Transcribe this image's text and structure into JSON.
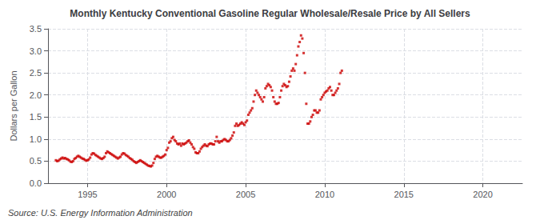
{
  "chart_data": {
    "type": "scatter",
    "title": "Monthly Kentucky Conventional Gasoline Regular Wholesale/Resale Price by All Sellers",
    "ylabel": "Dollars per Gallon",
    "annotations": [
      "Source: U.S. Energy Information Administration"
    ],
    "color": "#cc0000",
    "marker": "square",
    "grid": true,
    "xlim": [
      1992.5,
      2022.5
    ],
    "xticks": [
      1995,
      2000,
      2005,
      2010,
      2015,
      2020
    ],
    "ylim": [
      0.0,
      3.5
    ],
    "yticks": [
      {
        "value": 0.0,
        "label": "0.0"
      },
      0.5,
      {
        "value": 1.0,
        "label": "1.0"
      },
      1.5,
      {
        "value": 2.0,
        "label": "2.0"
      },
      2.5,
      {
        "value": 3.0,
        "label": "3.0"
      },
      3.5
    ],
    "x": [
      1993.0,
      1993.083,
      1993.167,
      1993.25,
      1993.333,
      1993.417,
      1993.5,
      1993.583,
      1993.667,
      1993.75,
      1993.833,
      1993.917,
      1994.0,
      1994.083,
      1994.167,
      1994.25,
      1994.333,
      1994.417,
      1994.5,
      1994.583,
      1994.667,
      1994.75,
      1994.833,
      1994.917,
      1995.0,
      1995.083,
      1995.167,
      1995.25,
      1995.333,
      1995.417,
      1995.5,
      1995.583,
      1995.667,
      1995.75,
      1995.833,
      1995.917,
      1996.0,
      1996.083,
      1996.167,
      1996.25,
      1996.333,
      1996.417,
      1996.5,
      1996.583,
      1996.667,
      1996.75,
      1996.833,
      1996.917,
      1997.0,
      1997.083,
      1997.167,
      1997.25,
      1997.333,
      1997.417,
      1997.5,
      1997.583,
      1997.667,
      1997.75,
      1997.833,
      1997.917,
      1998.0,
      1998.083,
      1998.167,
      1998.25,
      1998.333,
      1998.417,
      1998.5,
      1998.583,
      1998.667,
      1998.75,
      1998.833,
      1998.917,
      1999.0,
      1999.083,
      1999.167,
      1999.25,
      1999.333,
      1999.417,
      1999.5,
      1999.583,
      1999.667,
      1999.75,
      1999.833,
      1999.917,
      2000.0,
      2000.083,
      2000.167,
      2000.25,
      2000.333,
      2000.417,
      2000.5,
      2000.583,
      2000.667,
      2000.75,
      2000.833,
      2000.917,
      2001.0,
      2001.083,
      2001.167,
      2001.25,
      2001.333,
      2001.417,
      2001.5,
      2001.583,
      2001.667,
      2001.75,
      2001.833,
      2001.917,
      2002.0,
      2002.083,
      2002.167,
      2002.25,
      2002.333,
      2002.417,
      2002.5,
      2002.583,
      2002.667,
      2002.75,
      2002.833,
      2002.917,
      2003.0,
      2003.083,
      2003.167,
      2003.25,
      2003.333,
      2003.417,
      2003.5,
      2003.583,
      2003.667,
      2003.75,
      2003.833,
      2003.917,
      2004.0,
      2004.083,
      2004.167,
      2004.25,
      2004.333,
      2004.417,
      2004.5,
      2004.583,
      2004.667,
      2004.75,
      2004.833,
      2004.917,
      2005.0,
      2005.083,
      2005.167,
      2005.25,
      2005.333,
      2005.417,
      2005.5,
      2005.583,
      2005.667,
      2005.75,
      2005.833,
      2005.917,
      2006.0,
      2006.083,
      2006.167,
      2006.25,
      2006.333,
      2006.417,
      2006.5,
      2006.583,
      2006.667,
      2006.75,
      2006.833,
      2006.917,
      2007.0,
      2007.083,
      2007.167,
      2007.25,
      2007.333,
      2007.417,
      2007.5,
      2007.583,
      2007.667,
      2007.75,
      2007.833,
      2007.917,
      2008.0,
      2008.083,
      2008.167,
      2008.25,
      2008.333,
      2008.417,
      2008.5,
      2008.583,
      2008.667,
      2008.75,
      2008.833,
      2008.917,
      2009.0,
      2009.083,
      2009.167,
      2009.25,
      2009.333,
      2009.417,
      2009.5,
      2009.583,
      2009.667,
      2009.75,
      2009.833,
      2009.917,
      2010.0,
      2010.083,
      2010.167,
      2010.25,
      2010.333,
      2010.417,
      2010.5,
      2010.583,
      2010.667,
      2010.75,
      2010.833,
      2010.917,
      2011.0,
      2011.083
    ],
    "values": [
      0.52,
      0.5,
      0.51,
      0.54,
      0.56,
      0.58,
      0.56,
      0.57,
      0.55,
      0.54,
      0.52,
      0.49,
      0.48,
      0.5,
      0.55,
      0.57,
      0.6,
      0.62,
      0.6,
      0.58,
      0.56,
      0.55,
      0.53,
      0.51,
      0.52,
      0.54,
      0.58,
      0.65,
      0.68,
      0.67,
      0.64,
      0.62,
      0.6,
      0.58,
      0.56,
      0.55,
      0.57,
      0.6,
      0.68,
      0.72,
      0.7,
      0.68,
      0.66,
      0.64,
      0.62,
      0.6,
      0.58,
      0.56,
      0.58,
      0.6,
      0.65,
      0.68,
      0.67,
      0.64,
      0.62,
      0.6,
      0.57,
      0.55,
      0.53,
      0.5,
      0.48,
      0.46,
      0.48,
      0.5,
      0.52,
      0.5,
      0.48,
      0.46,
      0.44,
      0.42,
      0.4,
      0.39,
      0.38,
      0.4,
      0.46,
      0.55,
      0.6,
      0.62,
      0.6,
      0.58,
      0.58,
      0.6,
      0.62,
      0.65,
      0.75,
      0.8,
      0.92,
      0.95,
      1.02,
      1.05,
      0.98,
      0.95,
      0.9,
      0.88,
      0.9,
      0.85,
      0.9,
      0.88,
      0.9,
      0.92,
      0.95,
      0.97,
      0.92,
      0.88,
      0.82,
      0.78,
      0.7,
      0.68,
      0.68,
      0.72,
      0.78,
      0.82,
      0.85,
      0.88,
      0.85,
      0.84,
      0.88,
      0.9,
      0.9,
      0.88,
      0.88,
      0.95,
      1.05,
      0.95,
      0.92,
      0.95,
      0.95,
      0.98,
      1.0,
      0.98,
      0.95,
      0.95,
      0.98,
      1.02,
      1.08,
      1.15,
      1.3,
      1.35,
      1.3,
      1.32,
      1.35,
      1.38,
      1.35,
      1.32,
      1.38,
      1.42,
      1.55,
      1.6,
      1.65,
      1.7,
      1.85,
      2.0,
      2.1,
      2.05,
      2.0,
      1.95,
      1.9,
      1.85,
      1.95,
      2.15,
      2.2,
      2.25,
      2.22,
      2.18,
      2.1,
      1.95,
      1.85,
      1.8,
      1.8,
      1.82,
      1.95,
      2.1,
      2.2,
      2.25,
      2.22,
      2.18,
      2.2,
      2.3,
      2.42,
      2.55,
      2.6,
      2.55,
      2.7,
      2.9,
      3.1,
      3.2,
      3.35,
      3.28,
      2.95,
      2.5,
      1.8,
      1.35,
      1.35,
      1.4,
      1.5,
      1.55,
      1.65,
      1.65,
      1.6,
      1.6,
      1.65,
      1.9,
      1.95,
      2.0,
      2.05,
      2.08,
      2.1,
      2.15,
      2.18,
      2.1,
      2.0,
      2.0,
      2.05,
      2.1,
      2.15,
      2.25,
      2.5,
      2.55
    ]
  }
}
